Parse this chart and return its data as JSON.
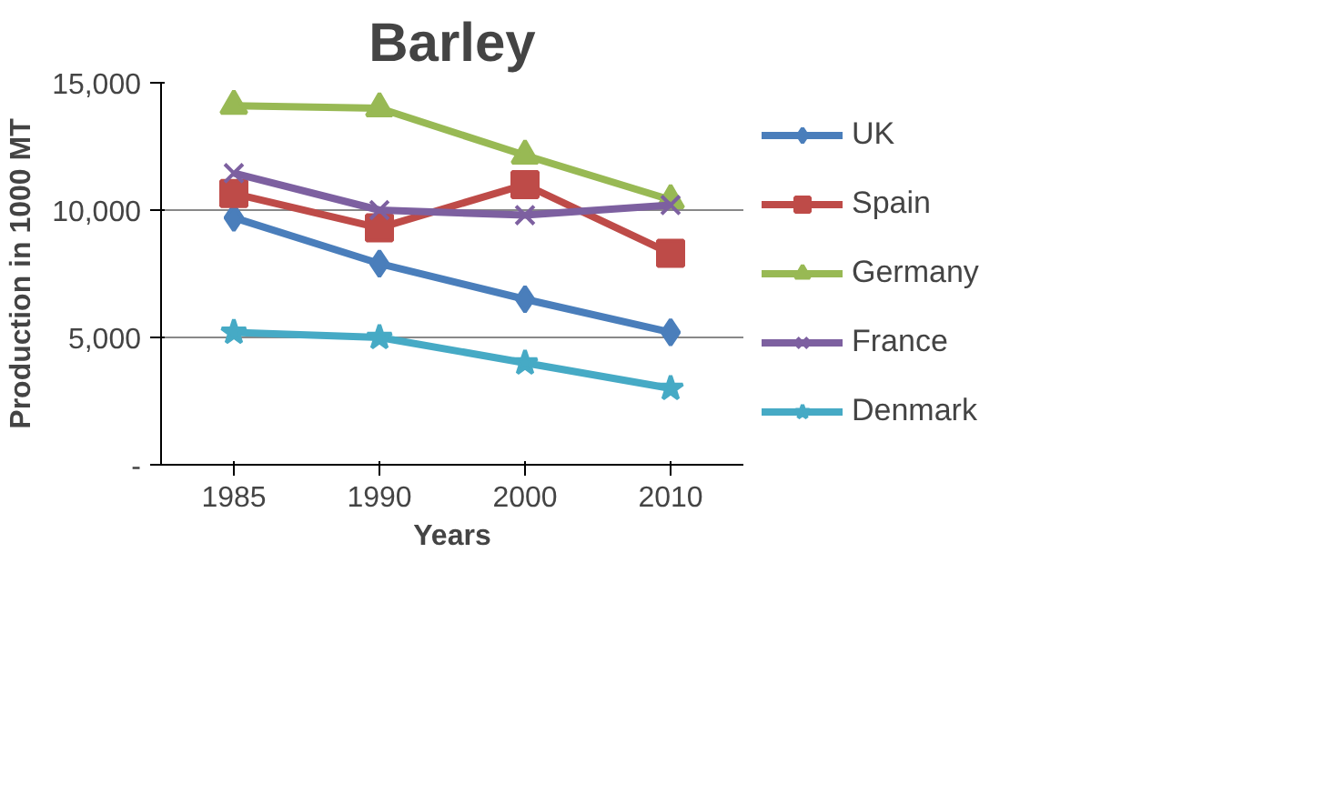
{
  "chart_data": {
    "type": "line",
    "title": "Barley",
    "xlabel": "Years",
    "ylabel": "Production in 1000 MT",
    "categories": [
      "1985",
      "1990",
      "2000",
      "2010"
    ],
    "series": [
      {
        "name": "UK",
        "color": "#4a7ebb",
        "marker": "diamond",
        "values": [
          9700,
          7900,
          6500,
          5200
        ]
      },
      {
        "name": "Spain",
        "color": "#be4b48",
        "marker": "square",
        "values": [
          10650,
          9300,
          11000,
          8300
        ]
      },
      {
        "name": "Germany",
        "color": "#98b954",
        "marker": "triangle",
        "values": [
          14100,
          14000,
          12150,
          10400
        ]
      },
      {
        "name": "France",
        "color": "#7d60a0",
        "marker": "x",
        "values": [
          11450,
          10000,
          9800,
          10200
        ]
      },
      {
        "name": "Denmark",
        "color": "#46aac5",
        "marker": "star",
        "values": [
          5200,
          5000,
          4000,
          3000
        ]
      }
    ],
    "ylim": [
      0,
      15000
    ],
    "yticks": [
      {
        "value": 0,
        "label": "-"
      },
      {
        "value": 5000,
        "label": "5,000"
      },
      {
        "value": 10000,
        "label": "10,000"
      },
      {
        "value": 15000,
        "label": "15,000"
      }
    ],
    "grid": "y",
    "legend": "right",
    "line_style": "solid"
  }
}
